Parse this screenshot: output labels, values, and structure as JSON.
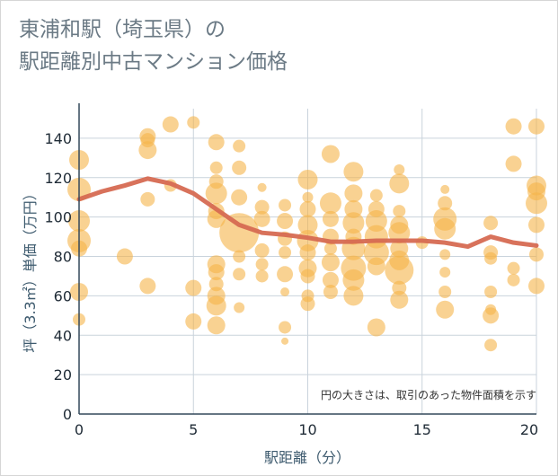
{
  "title": "東浦和駅（埼玉県）の\n駅距離別中古マンション価格",
  "chart_data": {
    "type": "scatter",
    "xlabel": "駅距離（分）",
    "ylabel": "坪（3.3㎡）単価（万円）",
    "note": "円の大きさは、取引のあった物件面積を示す",
    "xlim": [
      0,
      20
    ],
    "ylim": [
      0,
      155
    ],
    "xticks": [
      0,
      5,
      10,
      15,
      20
    ],
    "yticks": [
      0,
      20,
      40,
      60,
      80,
      100,
      120,
      140
    ],
    "grid": true,
    "colors": {
      "bubble": "#f5b44a",
      "line": "#d66a52",
      "grid": "#c9d3dc",
      "axis": "#34485a"
    },
    "trend_line": {
      "x": [
        0,
        1,
        2,
        3,
        4,
        5,
        6,
        7,
        8,
        9,
        10,
        11,
        12,
        13,
        14,
        15,
        16,
        17,
        18,
        19,
        20
      ],
      "y": [
        109,
        113,
        116,
        119.5,
        117,
        112,
        104,
        96,
        92,
        91,
        89.5,
        87.5,
        87.5,
        88,
        88,
        88,
        87,
        85,
        90,
        87,
        85.5
      ]
    },
    "points": [
      {
        "x": 0,
        "y": 129,
        "s": 11
      },
      {
        "x": 0,
        "y": 114,
        "s": 13
      },
      {
        "x": 0,
        "y": 98,
        "s": 12
      },
      {
        "x": 0,
        "y": 88,
        "s": 13
      },
      {
        "x": 0,
        "y": 84,
        "s": 9
      },
      {
        "x": 0,
        "y": 62,
        "s": 10
      },
      {
        "x": 0,
        "y": 48,
        "s": 7
      },
      {
        "x": 2,
        "y": 80,
        "s": 9
      },
      {
        "x": 3,
        "y": 141,
        "s": 9
      },
      {
        "x": 3,
        "y": 139,
        "s": 8
      },
      {
        "x": 3,
        "y": 134,
        "s": 10
      },
      {
        "x": 3,
        "y": 109,
        "s": 8
      },
      {
        "x": 3,
        "y": 65,
        "s": 9
      },
      {
        "x": 4,
        "y": 147,
        "s": 9
      },
      {
        "x": 4,
        "y": 116,
        "s": 7
      },
      {
        "x": 5,
        "y": 148,
        "s": 7
      },
      {
        "x": 5,
        "y": 64,
        "s": 9
      },
      {
        "x": 5,
        "y": 47,
        "s": 9
      },
      {
        "x": 6,
        "y": 138,
        "s": 9
      },
      {
        "x": 6,
        "y": 125,
        "s": 7
      },
      {
        "x": 6,
        "y": 118,
        "s": 8
      },
      {
        "x": 6,
        "y": 112,
        "s": 12
      },
      {
        "x": 6,
        "y": 103,
        "s": 9
      },
      {
        "x": 6,
        "y": 99,
        "s": 10
      },
      {
        "x": 6,
        "y": 76,
        "s": 10
      },
      {
        "x": 6,
        "y": 72,
        "s": 9
      },
      {
        "x": 6,
        "y": 66,
        "s": 8
      },
      {
        "x": 6,
        "y": 60,
        "s": 10
      },
      {
        "x": 6,
        "y": 55,
        "s": 11
      },
      {
        "x": 6,
        "y": 45,
        "s": 10
      },
      {
        "x": 7,
        "y": 136,
        "s": 7
      },
      {
        "x": 7,
        "y": 125,
        "s": 8
      },
      {
        "x": 7,
        "y": 110,
        "s": 9
      },
      {
        "x": 7,
        "y": 92,
        "s": 22
      },
      {
        "x": 7,
        "y": 80,
        "s": 7
      },
      {
        "x": 7,
        "y": 71,
        "s": 7
      },
      {
        "x": 7,
        "y": 54,
        "s": 6
      },
      {
        "x": 8,
        "y": 115,
        "s": 5
      },
      {
        "x": 8,
        "y": 105,
        "s": 8
      },
      {
        "x": 8,
        "y": 99,
        "s": 9
      },
      {
        "x": 8,
        "y": 83,
        "s": 8
      },
      {
        "x": 8,
        "y": 76,
        "s": 7
      },
      {
        "x": 8,
        "y": 70,
        "s": 7
      },
      {
        "x": 9,
        "y": 106,
        "s": 7
      },
      {
        "x": 9,
        "y": 98,
        "s": 9
      },
      {
        "x": 9,
        "y": 89,
        "s": 8
      },
      {
        "x": 9,
        "y": 82,
        "s": 7
      },
      {
        "x": 9,
        "y": 71,
        "s": 9
      },
      {
        "x": 9,
        "y": 62,
        "s": 5
      },
      {
        "x": 9,
        "y": 44,
        "s": 7
      },
      {
        "x": 9,
        "y": 37,
        "s": 4
      },
      {
        "x": 10,
        "y": 119,
        "s": 11
      },
      {
        "x": 10,
        "y": 110,
        "s": 6
      },
      {
        "x": 10,
        "y": 104,
        "s": 9
      },
      {
        "x": 10,
        "y": 96,
        "s": 11
      },
      {
        "x": 10,
        "y": 88,
        "s": 12
      },
      {
        "x": 10,
        "y": 82,
        "s": 9
      },
      {
        "x": 10,
        "y": 74,
        "s": 10
      },
      {
        "x": 10,
        "y": 70,
        "s": 8
      },
      {
        "x": 10,
        "y": 60,
        "s": 7
      },
      {
        "x": 10,
        "y": 56,
        "s": 8
      },
      {
        "x": 11,
        "y": 132,
        "s": 10
      },
      {
        "x": 11,
        "y": 107,
        "s": 12
      },
      {
        "x": 11,
        "y": 99,
        "s": 9
      },
      {
        "x": 11,
        "y": 90,
        "s": 9
      },
      {
        "x": 11,
        "y": 84,
        "s": 7
      },
      {
        "x": 11,
        "y": 77,
        "s": 10
      },
      {
        "x": 11,
        "y": 68,
        "s": 9
      },
      {
        "x": 11,
        "y": 62,
        "s": 8
      },
      {
        "x": 12,
        "y": 123,
        "s": 11
      },
      {
        "x": 12,
        "y": 112,
        "s": 10
      },
      {
        "x": 12,
        "y": 104,
        "s": 10
      },
      {
        "x": 12,
        "y": 97,
        "s": 12
      },
      {
        "x": 12,
        "y": 90,
        "s": 9
      },
      {
        "x": 12,
        "y": 84,
        "s": 13
      },
      {
        "x": 12,
        "y": 74,
        "s": 14
      },
      {
        "x": 12,
        "y": 68,
        "s": 12
      },
      {
        "x": 12,
        "y": 60,
        "s": 11
      },
      {
        "x": 13,
        "y": 111,
        "s": 7
      },
      {
        "x": 13,
        "y": 104,
        "s": 9
      },
      {
        "x": 13,
        "y": 98,
        "s": 12
      },
      {
        "x": 13,
        "y": 90,
        "s": 13
      },
      {
        "x": 13,
        "y": 82,
        "s": 14
      },
      {
        "x": 13,
        "y": 75,
        "s": 10
      },
      {
        "x": 13,
        "y": 44,
        "s": 10
      },
      {
        "x": 14,
        "y": 124,
        "s": 6
      },
      {
        "x": 14,
        "y": 117,
        "s": 11
      },
      {
        "x": 14,
        "y": 103,
        "s": 7
      },
      {
        "x": 14,
        "y": 96,
        "s": 10
      },
      {
        "x": 14,
        "y": 92,
        "s": 12
      },
      {
        "x": 14,
        "y": 84,
        "s": 10
      },
      {
        "x": 14,
        "y": 78,
        "s": 11
      },
      {
        "x": 14,
        "y": 73,
        "s": 16
      },
      {
        "x": 14,
        "y": 64,
        "s": 8
      },
      {
        "x": 14,
        "y": 58,
        "s": 10
      },
      {
        "x": 15,
        "y": 87,
        "s": 7
      },
      {
        "x": 16,
        "y": 114,
        "s": 5
      },
      {
        "x": 16,
        "y": 107,
        "s": 8
      },
      {
        "x": 16,
        "y": 99,
        "s": 13
      },
      {
        "x": 16,
        "y": 94,
        "s": 12
      },
      {
        "x": 16,
        "y": 81,
        "s": 6
      },
      {
        "x": 16,
        "y": 72,
        "s": 6
      },
      {
        "x": 16,
        "y": 62,
        "s": 7
      },
      {
        "x": 16,
        "y": 53,
        "s": 10
      },
      {
        "x": 18,
        "y": 97,
        "s": 8
      },
      {
        "x": 18,
        "y": 82,
        "s": 8
      },
      {
        "x": 18,
        "y": 79,
        "s": 7
      },
      {
        "x": 18,
        "y": 62,
        "s": 7
      },
      {
        "x": 18,
        "y": 53,
        "s": 6
      },
      {
        "x": 18,
        "y": 50,
        "s": 9
      },
      {
        "x": 18,
        "y": 35,
        "s": 7
      },
      {
        "x": 19,
        "y": 146,
        "s": 9
      },
      {
        "x": 19,
        "y": 127,
        "s": 9
      },
      {
        "x": 19,
        "y": 74,
        "s": 7
      },
      {
        "x": 19,
        "y": 68,
        "s": 7
      },
      {
        "x": 20,
        "y": 146,
        "s": 9
      },
      {
        "x": 20,
        "y": 116,
        "s": 11
      },
      {
        "x": 20,
        "y": 113,
        "s": 10
      },
      {
        "x": 20,
        "y": 107,
        "s": 12
      },
      {
        "x": 20,
        "y": 96,
        "s": 9
      },
      {
        "x": 20,
        "y": 81,
        "s": 8
      },
      {
        "x": 20,
        "y": 65,
        "s": 9
      }
    ]
  }
}
